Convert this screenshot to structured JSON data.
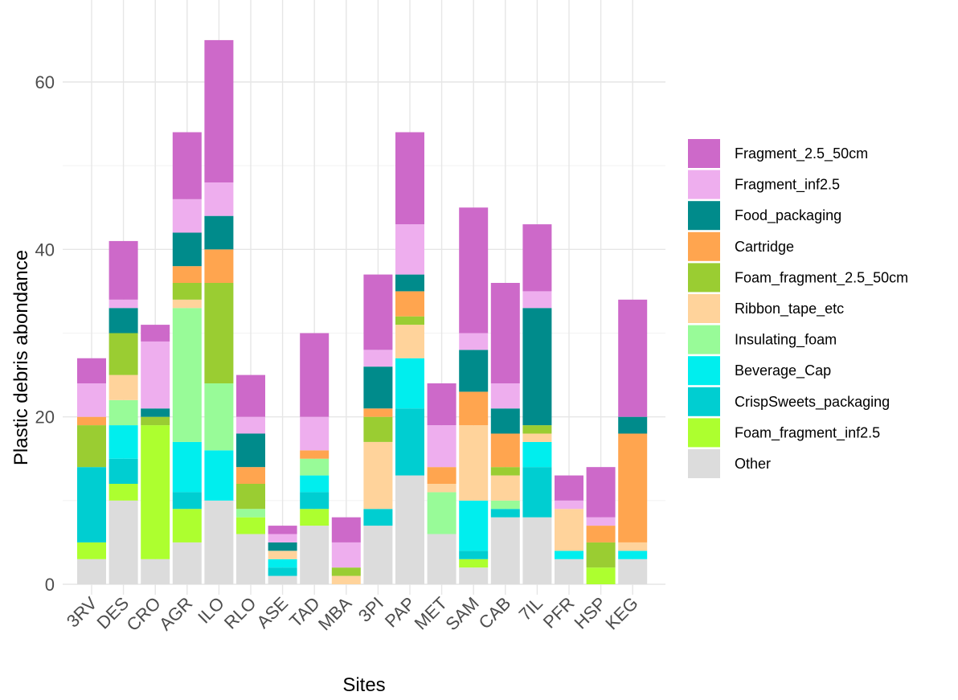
{
  "chart_data": {
    "type": "bar",
    "stacked": true,
    "title": "",
    "xlabel": "Sites",
    "ylabel": "Plastic debris abondance",
    "ylim": [
      0,
      65
    ],
    "yticks": [
      0,
      20,
      40,
      60
    ],
    "grid": true,
    "legend_position": "right",
    "categories": [
      "3RV",
      "DES",
      "CRO",
      "AGR",
      "ILO",
      "RLO",
      "ASE",
      "TAD",
      "MBA",
      "3PI",
      "PAP",
      "MET",
      "SAM",
      "CAB",
      "7IL",
      "PFR",
      "HSP",
      "KEG"
    ],
    "series": [
      {
        "name": "Other",
        "color": "#dcdcdc",
        "values": [
          3,
          10,
          3,
          5,
          10,
          6,
          1,
          7,
          0,
          7,
          13,
          6,
          2,
          8,
          8,
          3,
          0,
          3
        ]
      },
      {
        "name": "Foam_fragment_inf2.5",
        "color": "#adff2f",
        "values": [
          2,
          2,
          16,
          4,
          0,
          2,
          0,
          2,
          0,
          0,
          0,
          0,
          1,
          0,
          0,
          0,
          2,
          0
        ]
      },
      {
        "name": "CrispSweets_packaging",
        "color": "#00ced1",
        "values": [
          9,
          3,
          0,
          2,
          0,
          0,
          1,
          2,
          0,
          2,
          8,
          0,
          1,
          1,
          6,
          0,
          0,
          0
        ]
      },
      {
        "name": "Beverage_Cap",
        "color": "#00eeee",
        "values": [
          0,
          4,
          0,
          6,
          6,
          0,
          1,
          2,
          0,
          0,
          6,
          0,
          6,
          0,
          3,
          1,
          0,
          1
        ]
      },
      {
        "name": "Insulating_foam",
        "color": "#98fb98",
        "values": [
          0,
          3,
          0,
          16,
          8,
          1,
          0,
          2,
          0,
          0,
          0,
          5,
          0,
          1,
          0,
          0,
          0,
          0
        ]
      },
      {
        "name": "Ribbon_tape_etc",
        "color": "#ffd39b",
        "values": [
          0,
          3,
          0,
          1,
          0,
          0,
          1,
          0,
          1,
          8,
          4,
          1,
          9,
          3,
          1,
          5,
          0,
          1
        ]
      },
      {
        "name": "Foam_fragment_2.5_50cm",
        "color": "#9acd32",
        "values": [
          5,
          5,
          1,
          2,
          12,
          3,
          0,
          0,
          1,
          3,
          1,
          0,
          0,
          1,
          1,
          0,
          3,
          0
        ]
      },
      {
        "name": "Cartridge",
        "color": "#ffa54f",
        "values": [
          1,
          0,
          0,
          2,
          4,
          2,
          0,
          1,
          0,
          1,
          3,
          2,
          4,
          4,
          0,
          0,
          2,
          13
        ]
      },
      {
        "name": "Food_packaging",
        "color": "#008b8b",
        "values": [
          0,
          3,
          1,
          4,
          4,
          4,
          1,
          0,
          0,
          5,
          2,
          0,
          5,
          3,
          14,
          0,
          0,
          2
        ]
      },
      {
        "name": "Fragment_inf2.5",
        "color": "#eeaeee",
        "values": [
          4,
          1,
          8,
          4,
          4,
          2,
          1,
          4,
          3,
          2,
          6,
          5,
          2,
          3,
          2,
          1,
          1,
          0
        ]
      },
      {
        "name": "Fragment_2.5_50cm",
        "color": "#cd69c9",
        "values": [
          3,
          7,
          2,
          8,
          17,
          5,
          1,
          10,
          3,
          9,
          11,
          5,
          15,
          12,
          8,
          3,
          6,
          14
        ]
      }
    ],
    "legend_order": [
      "Fragment_2.5_50cm",
      "Fragment_inf2.5",
      "Food_packaging",
      "Cartridge",
      "Foam_fragment_2.5_50cm",
      "Ribbon_tape_etc",
      "Insulating_foam",
      "Beverage_Cap",
      "CrispSweets_packaging",
      "Foam_fragment_inf2.5",
      "Other"
    ]
  }
}
